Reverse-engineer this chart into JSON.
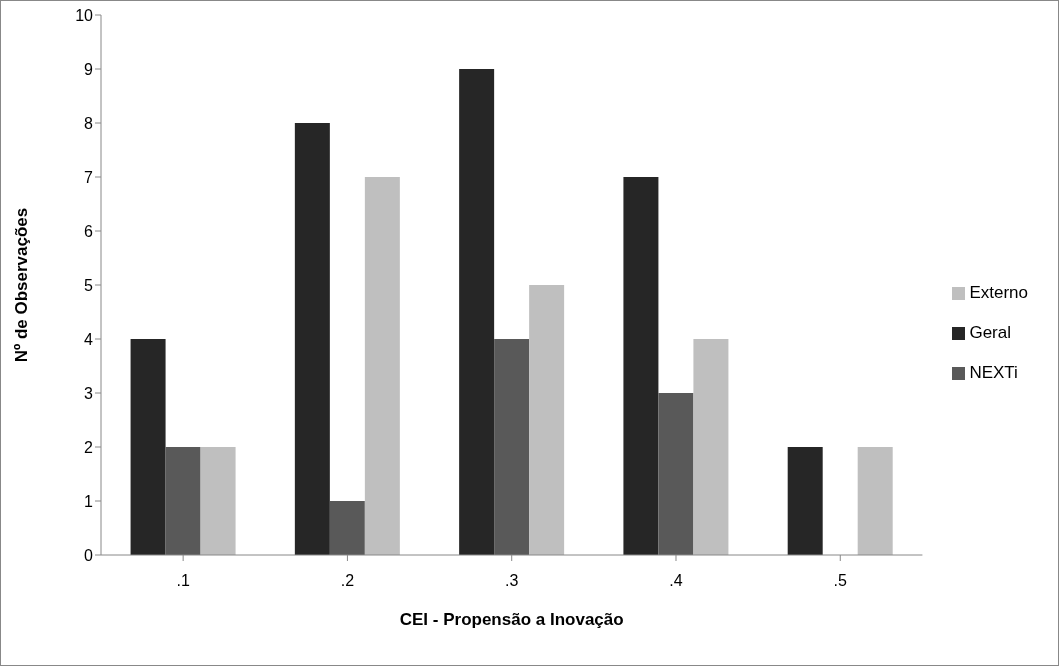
{
  "chart_data": {
    "type": "bar",
    "xlabel": "CEI - Propensão a Inovação",
    "ylabel": "Nº de Observações",
    "categories": [
      ".1",
      ".2",
      ".3",
      ".4",
      ".5"
    ],
    "series": [
      {
        "name": "Geral",
        "color": "#262626",
        "values": [
          4,
          8,
          9,
          7,
          2
        ]
      },
      {
        "name": "NEXTi",
        "color": "#595959",
        "values": [
          2,
          1,
          4,
          3,
          null
        ]
      },
      {
        "name": "Externo",
        "color": "#bfbfbf",
        "values": [
          2,
          7,
          5,
          4,
          2
        ]
      }
    ],
    "ylim": [
      0,
      10
    ],
    "yticks": [
      0,
      1,
      2,
      3,
      4,
      5,
      6,
      7,
      8,
      9,
      10
    ],
    "grid": false,
    "legend": "right"
  }
}
